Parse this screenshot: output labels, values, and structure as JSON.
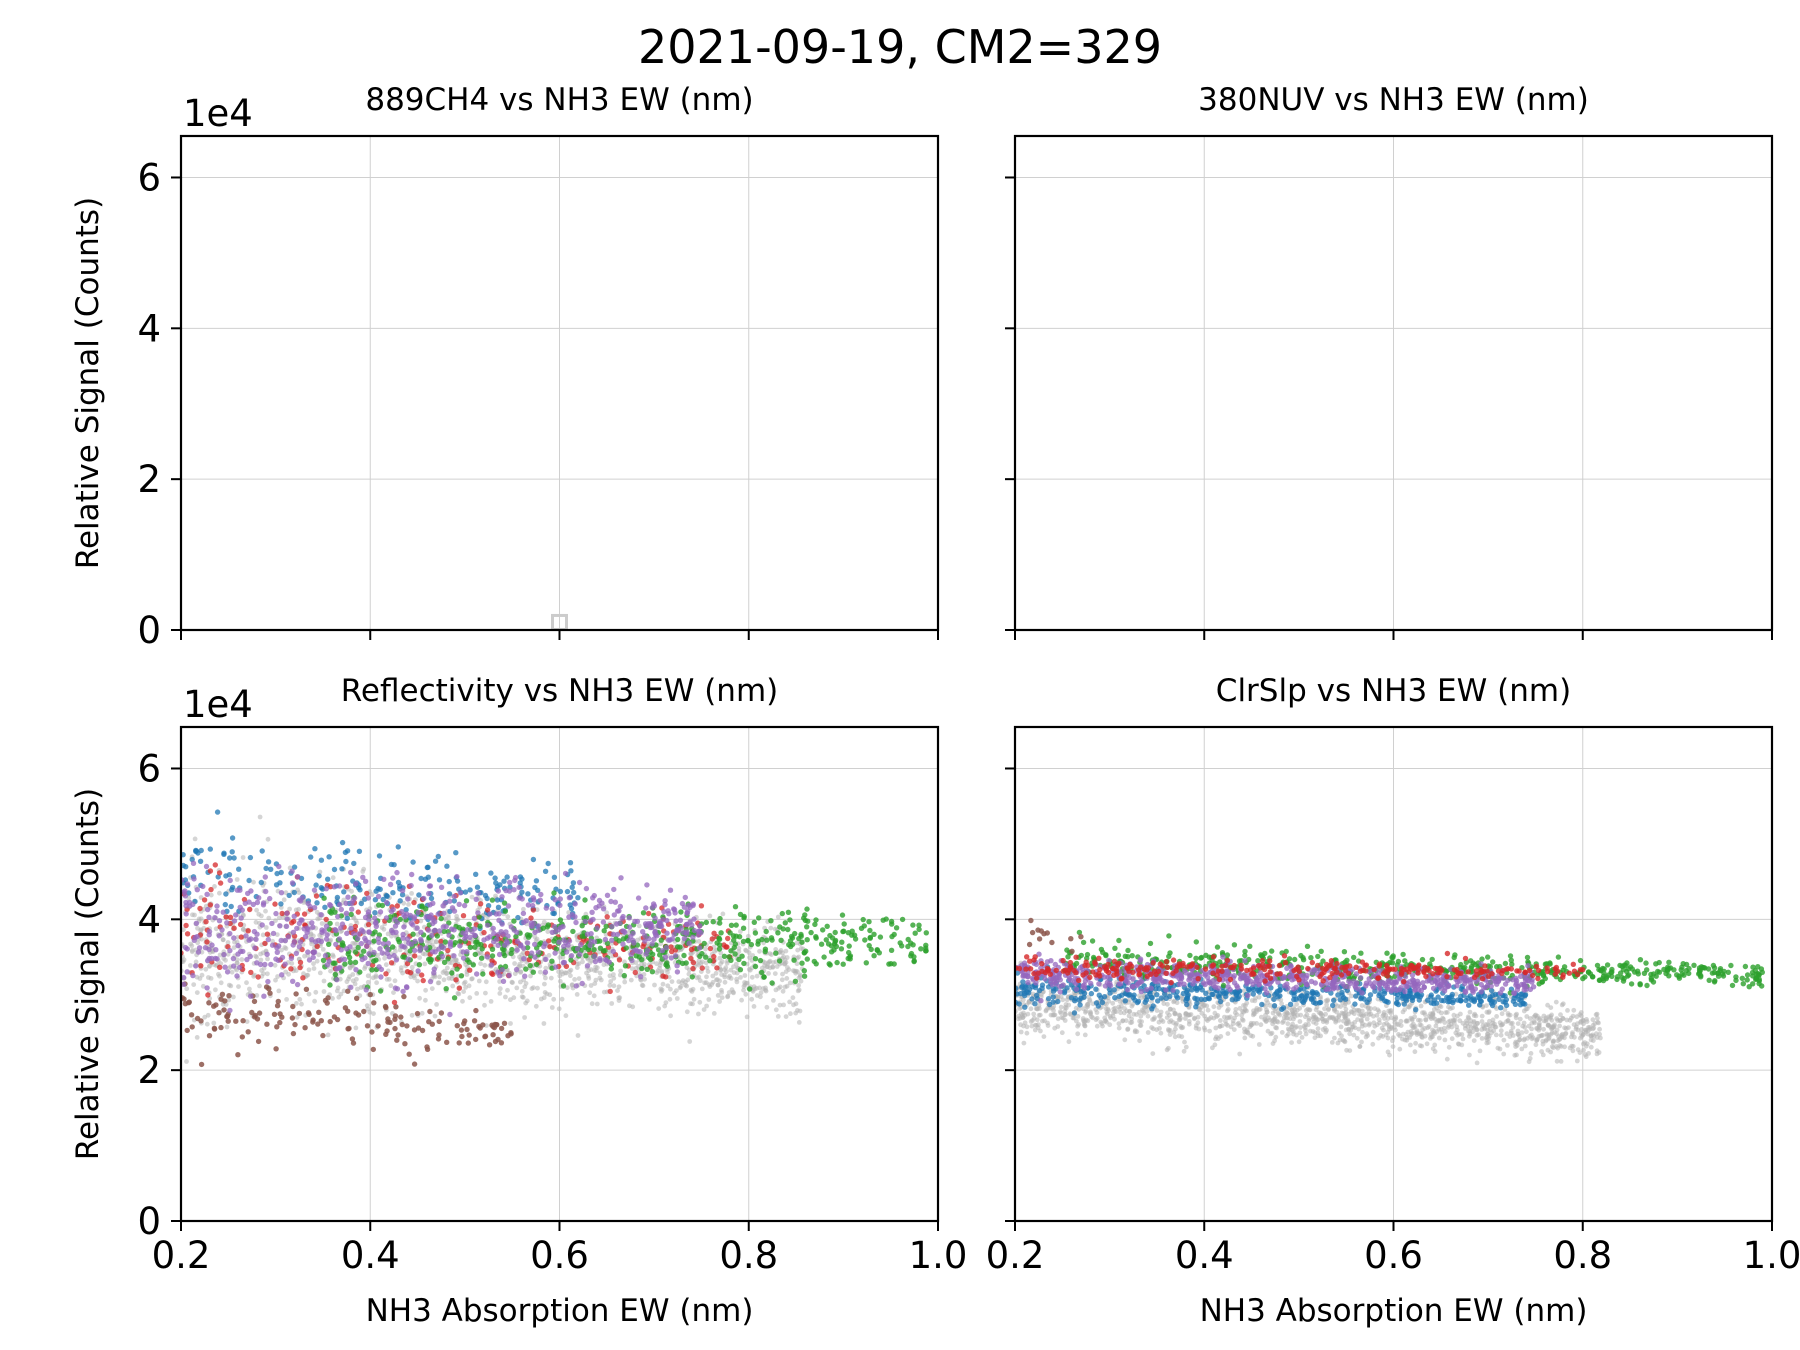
{
  "chart_data": {
    "title": "2021-09-19, CM2=329",
    "panels": [
      {
        "type": "scatter",
        "title": "889CH4 vs NH3 EW (nm)",
        "xlabel": "",
        "ylabel": "Relative Signal (Counts)",
        "y_multiplier": "1e4",
        "xlim": [
          0.2,
          1.0
        ],
        "ylim": [
          0,
          6.55
        ],
        "grid": true,
        "show_xticklabels": false,
        "show_yticklabels": true,
        "xticks": [
          0.2,
          0.4,
          0.6,
          0.8,
          1.0
        ],
        "yticks": [
          0,
          2,
          4,
          6
        ],
        "xtick_labels": [
          "0.2",
          "0.4",
          "0.6",
          "0.8",
          "1.0"
        ],
        "ytick_labels": [
          "0",
          "2",
          "4",
          "6"
        ],
        "markers": [
          {
            "x": 0.6,
            "y": 0.1,
            "shape": "hollow-square",
            "color": "#cccccc"
          }
        ],
        "clouds": []
      },
      {
        "type": "scatter",
        "title": "380NUV vs NH3 EW (nm)",
        "xlabel": "",
        "ylabel": "",
        "y_multiplier": "",
        "xlim": [
          0.2,
          1.0
        ],
        "ylim": [
          0,
          6.55
        ],
        "grid": true,
        "show_xticklabels": false,
        "show_yticklabels": false,
        "xticks": [
          0.2,
          0.4,
          0.6,
          0.8,
          1.0
        ],
        "yticks": [
          0,
          2,
          4,
          6
        ],
        "xtick_labels": [
          "0.2",
          "0.4",
          "0.6",
          "0.8",
          "1.0"
        ],
        "ytick_labels": [
          "0",
          "2",
          "4",
          "6"
        ],
        "markers": [],
        "clouds": []
      },
      {
        "type": "scatter",
        "title": "Reflectivity vs NH3 EW (nm)",
        "xlabel": "NH3 Absorption EW (nm)",
        "ylabel": "Relative Signal (Counts)",
        "y_multiplier": "1e4",
        "xlim": [
          0.2,
          1.0
        ],
        "ylim": [
          0,
          6.55
        ],
        "grid": true,
        "show_xticklabels": true,
        "show_yticklabels": true,
        "xticks": [
          0.2,
          0.4,
          0.6,
          0.8,
          1.0
        ],
        "yticks": [
          0,
          2,
          4,
          6
        ],
        "xtick_labels": [
          "0.2",
          "0.4",
          "0.6",
          "0.8",
          "1.0"
        ],
        "ytick_labels": [
          "0",
          "2",
          "4",
          "6"
        ],
        "markers": [],
        "clouds": [
          {
            "color": "#b3b3b3",
            "opacity": 0.55,
            "n": 1400,
            "x": [
              0.2,
              0.86
            ],
            "y_center_start": 3.7,
            "y_center_end": 3.3,
            "y_spread_start": 1.0,
            "y_spread_end": 0.5,
            "radius": 2.4
          },
          {
            "color": "#8c564b",
            "opacity": 0.85,
            "n": 160,
            "x": [
              0.2,
              0.55
            ],
            "y_center_start": 2.8,
            "y_center_end": 2.5,
            "y_spread_start": 0.5,
            "y_spread_end": 0.25,
            "radius": 2.7
          },
          {
            "color": "#1f77b4",
            "opacity": 0.75,
            "n": 220,
            "x": [
              0.2,
              0.62
            ],
            "y_center_start": 4.6,
            "y_center_end": 4.3,
            "y_spread_start": 0.6,
            "y_spread_end": 0.4,
            "radius": 2.7
          },
          {
            "color": "#d62728",
            "opacity": 0.75,
            "n": 240,
            "x": [
              0.2,
              0.78
            ],
            "y_center_start": 3.9,
            "y_center_end": 3.6,
            "y_spread_start": 0.8,
            "y_spread_end": 0.35,
            "radius": 2.7
          },
          {
            "color": "#2ca02c",
            "opacity": 0.8,
            "n": 520,
            "x": [
              0.35,
              0.99
            ],
            "y_center_start": 3.7,
            "y_center_end": 3.7,
            "y_spread_start": 0.6,
            "y_spread_end": 0.35,
            "radius": 2.7
          },
          {
            "color": "#9467bd",
            "opacity": 0.75,
            "n": 650,
            "x": [
              0.2,
              0.75
            ],
            "y_center_start": 3.8,
            "y_center_end": 3.9,
            "y_spread_start": 0.8,
            "y_spread_end": 0.5,
            "radius": 2.7
          }
        ]
      },
      {
        "type": "scatter",
        "title": "ClrSlp vs NH3 EW (nm)",
        "xlabel": "NH3 Absorption EW (nm)",
        "ylabel": "",
        "y_multiplier": "",
        "xlim": [
          0.2,
          1.0
        ],
        "ylim": [
          0,
          6.55
        ],
        "grid": true,
        "show_xticklabels": true,
        "show_yticklabels": false,
        "xticks": [
          0.2,
          0.4,
          0.6,
          0.8,
          1.0
        ],
        "yticks": [
          0,
          2,
          4,
          6
        ],
        "xtick_labels": [
          "0.2",
          "0.4",
          "0.6",
          "0.8",
          "1.0"
        ],
        "ytick_labels": [
          "0",
          "2",
          "4",
          "6"
        ],
        "markers": [],
        "clouds": [
          {
            "color": "#b3b3b3",
            "opacity": 0.55,
            "n": 1400,
            "x": [
              0.2,
              0.82
            ],
            "y_center_start": 2.9,
            "y_center_end": 2.5,
            "y_spread_start": 0.4,
            "y_spread_end": 0.35,
            "radius": 2.4
          },
          {
            "color": "#1f77b4",
            "opacity": 0.75,
            "n": 450,
            "x": [
              0.2,
              0.74
            ],
            "y_center_start": 3.05,
            "y_center_end": 2.95,
            "y_spread_start": 0.2,
            "y_spread_end": 0.12,
            "radius": 2.7
          },
          {
            "color": "#2ca02c",
            "opacity": 0.8,
            "n": 550,
            "x": [
              0.25,
              0.99
            ],
            "y_center_start": 3.45,
            "y_center_end": 3.25,
            "y_spread_start": 0.25,
            "y_spread_end": 0.15,
            "radius": 2.7
          },
          {
            "color": "#9467bd",
            "opacity": 0.75,
            "n": 650,
            "x": [
              0.2,
              0.75
            ],
            "y_center_start": 3.3,
            "y_center_end": 3.15,
            "y_spread_start": 0.22,
            "y_spread_end": 0.15,
            "radius": 2.7
          },
          {
            "color": "#d62728",
            "opacity": 0.8,
            "n": 280,
            "x": [
              0.2,
              0.8
            ],
            "y_center_start": 3.35,
            "y_center_end": 3.3,
            "y_spread_start": 0.15,
            "y_spread_end": 0.1,
            "radius": 2.7
          },
          {
            "color": "#8c564b",
            "opacity": 0.85,
            "n": 12,
            "x": [
              0.2,
              0.27
            ],
            "y_center_start": 3.7,
            "y_center_end": 3.7,
            "y_spread_start": 0.25,
            "y_spread_end": 0.25,
            "radius": 2.7
          }
        ]
      }
    ]
  }
}
